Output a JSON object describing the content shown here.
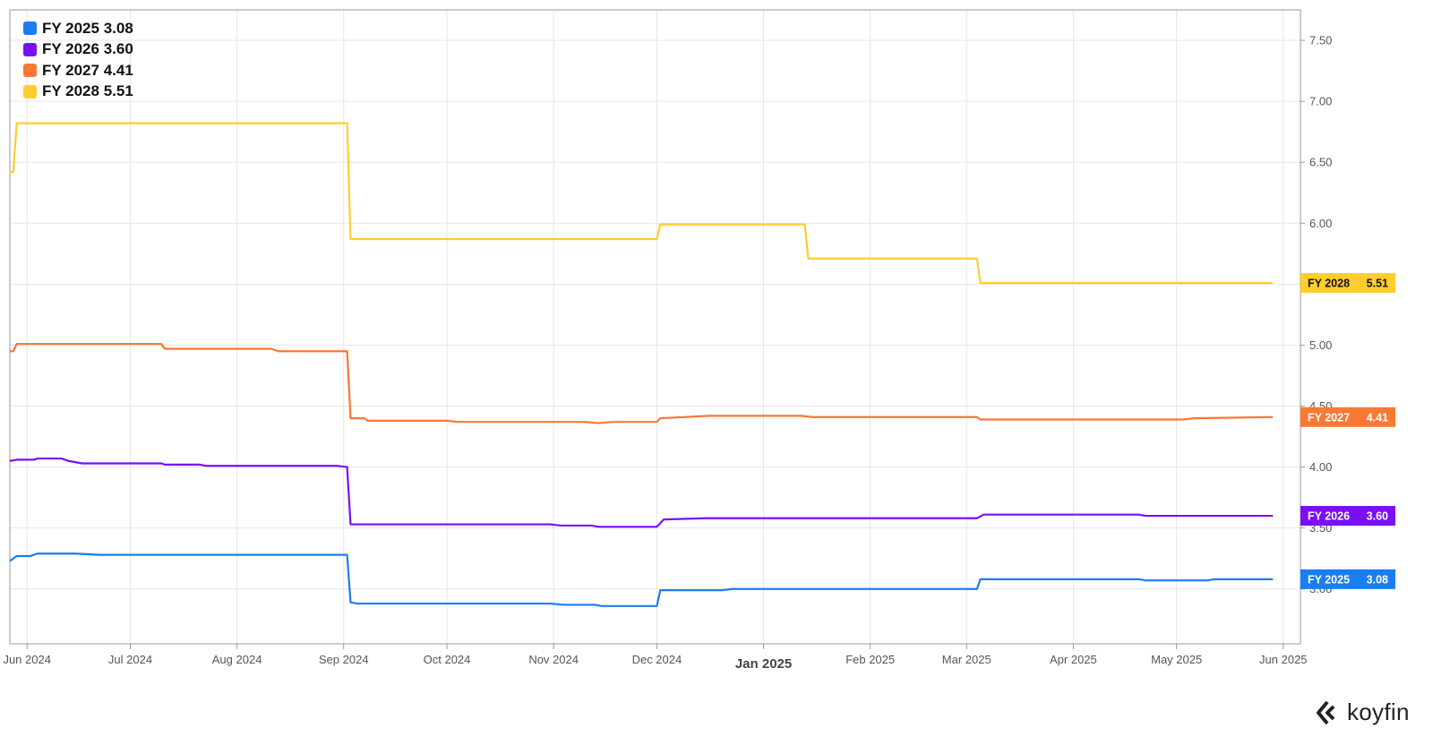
{
  "chart_data": {
    "type": "line",
    "title": "",
    "xlabel": "",
    "ylabel": "",
    "ylim": [
      2.55,
      7.75
    ],
    "yticks": [
      3.0,
      3.5,
      4.0,
      4.5,
      5.0,
      5.5,
      6.0,
      6.5,
      7.0,
      7.5
    ],
    "ytick_labels": [
      "3.00",
      "3.50",
      "4.00",
      "4.50",
      "5.00",
      "5.50",
      "6.00",
      "6.50",
      "7.00",
      "7.50"
    ],
    "xlim": [
      "2024-05-27",
      "2025-06-06"
    ],
    "xticks": [
      {
        "date": "2024-06-01",
        "label": "Jun 2024",
        "major": false
      },
      {
        "date": "2024-07-01",
        "label": "Jul 2024",
        "major": false
      },
      {
        "date": "2024-08-01",
        "label": "Aug 2024",
        "major": false
      },
      {
        "date": "2024-09-01",
        "label": "Sep 2024",
        "major": false
      },
      {
        "date": "2024-10-01",
        "label": "Oct 2024",
        "major": false
      },
      {
        "date": "2024-11-01",
        "label": "Nov 2024",
        "major": false
      },
      {
        "date": "2024-12-01",
        "label": "Dec 2024",
        "major": false
      },
      {
        "date": "2025-01-01",
        "label": "Jan 2025",
        "major": true
      },
      {
        "date": "2025-02-01",
        "label": "Feb 2025",
        "major": false
      },
      {
        "date": "2025-03-01",
        "label": "Mar 2025",
        "major": false
      },
      {
        "date": "2025-04-01",
        "label": "Apr 2025",
        "major": false
      },
      {
        "date": "2025-05-01",
        "label": "May 2025",
        "major": false
      },
      {
        "date": "2025-06-01",
        "label": "Jun 2025",
        "major": false
      }
    ],
    "grid": true,
    "legend_position": "top-left",
    "series": [
      {
        "name": "FY 2025",
        "last": "3.08",
        "color": "#1a7ef0",
        "points": [
          [
            "2024-05-27",
            3.23
          ],
          [
            "2024-05-29",
            3.27
          ],
          [
            "2024-06-02",
            3.27
          ],
          [
            "2024-06-04",
            3.29
          ],
          [
            "2024-06-15",
            3.29
          ],
          [
            "2024-06-22",
            3.28
          ],
          [
            "2024-07-31",
            3.28
          ],
          [
            "2024-08-20",
            3.28
          ],
          [
            "2024-09-02",
            3.28
          ],
          [
            "2024-09-03",
            2.89
          ],
          [
            "2024-09-05",
            2.88
          ],
          [
            "2024-10-31",
            2.88
          ],
          [
            "2024-11-04",
            2.87
          ],
          [
            "2024-11-13",
            2.87
          ],
          [
            "2024-11-15",
            2.86
          ],
          [
            "2024-12-01",
            2.86
          ],
          [
            "2024-12-02",
            2.99
          ],
          [
            "2024-12-20",
            2.99
          ],
          [
            "2024-12-23",
            3.0
          ],
          [
            "2025-02-20",
            3.0
          ],
          [
            "2025-03-04",
            3.0
          ],
          [
            "2025-03-05",
            3.08
          ],
          [
            "2025-04-20",
            3.08
          ],
          [
            "2025-04-22",
            3.07
          ],
          [
            "2025-05-10",
            3.07
          ],
          [
            "2025-05-12",
            3.08
          ],
          [
            "2025-05-29",
            3.08
          ]
        ]
      },
      {
        "name": "FY 2026",
        "last": "3.60",
        "color": "#7a0ff5",
        "points": [
          [
            "2024-05-27",
            4.05
          ],
          [
            "2024-05-29",
            4.06
          ],
          [
            "2024-06-03",
            4.06
          ],
          [
            "2024-06-04",
            4.07
          ],
          [
            "2024-06-11",
            4.07
          ],
          [
            "2024-06-13",
            4.05
          ],
          [
            "2024-06-17",
            4.03
          ],
          [
            "2024-07-10",
            4.03
          ],
          [
            "2024-07-11",
            4.02
          ],
          [
            "2024-07-21",
            4.02
          ],
          [
            "2024-07-23",
            4.01
          ],
          [
            "2024-08-30",
            4.01
          ],
          [
            "2024-09-02",
            4.0
          ],
          [
            "2024-09-03",
            3.53
          ],
          [
            "2024-10-31",
            3.53
          ],
          [
            "2024-11-03",
            3.52
          ],
          [
            "2024-11-12",
            3.52
          ],
          [
            "2024-11-14",
            3.51
          ],
          [
            "2024-12-01",
            3.51
          ],
          [
            "2024-12-03",
            3.57
          ],
          [
            "2024-12-15",
            3.58
          ],
          [
            "2025-01-20",
            3.58
          ],
          [
            "2025-03-04",
            3.58
          ],
          [
            "2025-03-06",
            3.61
          ],
          [
            "2025-04-20",
            3.61
          ],
          [
            "2025-04-22",
            3.6
          ],
          [
            "2025-05-29",
            3.6
          ]
        ]
      },
      {
        "name": "FY 2027",
        "last": "4.41",
        "color": "#f87932",
        "points": [
          [
            "2024-05-27",
            4.95
          ],
          [
            "2024-05-28",
            4.95
          ],
          [
            "2024-05-29",
            5.01
          ],
          [
            "2024-07-10",
            5.01
          ],
          [
            "2024-07-11",
            4.97
          ],
          [
            "2024-08-11",
            4.97
          ],
          [
            "2024-08-13",
            4.95
          ],
          [
            "2024-09-02",
            4.95
          ],
          [
            "2024-09-03",
            4.4
          ],
          [
            "2024-09-07",
            4.4
          ],
          [
            "2024-09-08",
            4.38
          ],
          [
            "2024-10-01",
            4.38
          ],
          [
            "2024-10-04",
            4.37
          ],
          [
            "2024-11-10",
            4.37
          ],
          [
            "2024-11-14",
            4.36
          ],
          [
            "2024-11-18",
            4.37
          ],
          [
            "2024-12-01",
            4.37
          ],
          [
            "2024-12-02",
            4.4
          ],
          [
            "2024-12-16",
            4.42
          ],
          [
            "2025-01-12",
            4.42
          ],
          [
            "2025-01-15",
            4.41
          ],
          [
            "2025-03-04",
            4.41
          ],
          [
            "2025-03-05",
            4.39
          ],
          [
            "2025-05-03",
            4.39
          ],
          [
            "2025-05-06",
            4.4
          ],
          [
            "2025-05-29",
            4.41
          ]
        ]
      },
      {
        "name": "FY 2028",
        "last": "5.51",
        "color": "#ffcd2e",
        "points": [
          [
            "2024-05-27",
            6.42
          ],
          [
            "2024-05-28",
            6.42
          ],
          [
            "2024-05-29",
            6.82
          ],
          [
            "2024-09-02",
            6.82
          ],
          [
            "2024-09-03",
            5.87
          ],
          [
            "2024-12-01",
            5.87
          ],
          [
            "2024-12-02",
            5.99
          ],
          [
            "2025-01-13",
            5.99
          ],
          [
            "2025-01-14",
            5.71
          ],
          [
            "2025-03-04",
            5.71
          ],
          [
            "2025-03-05",
            5.51
          ],
          [
            "2025-05-29",
            5.51
          ]
        ]
      }
    ]
  },
  "brand": {
    "name": "koyfin"
  }
}
